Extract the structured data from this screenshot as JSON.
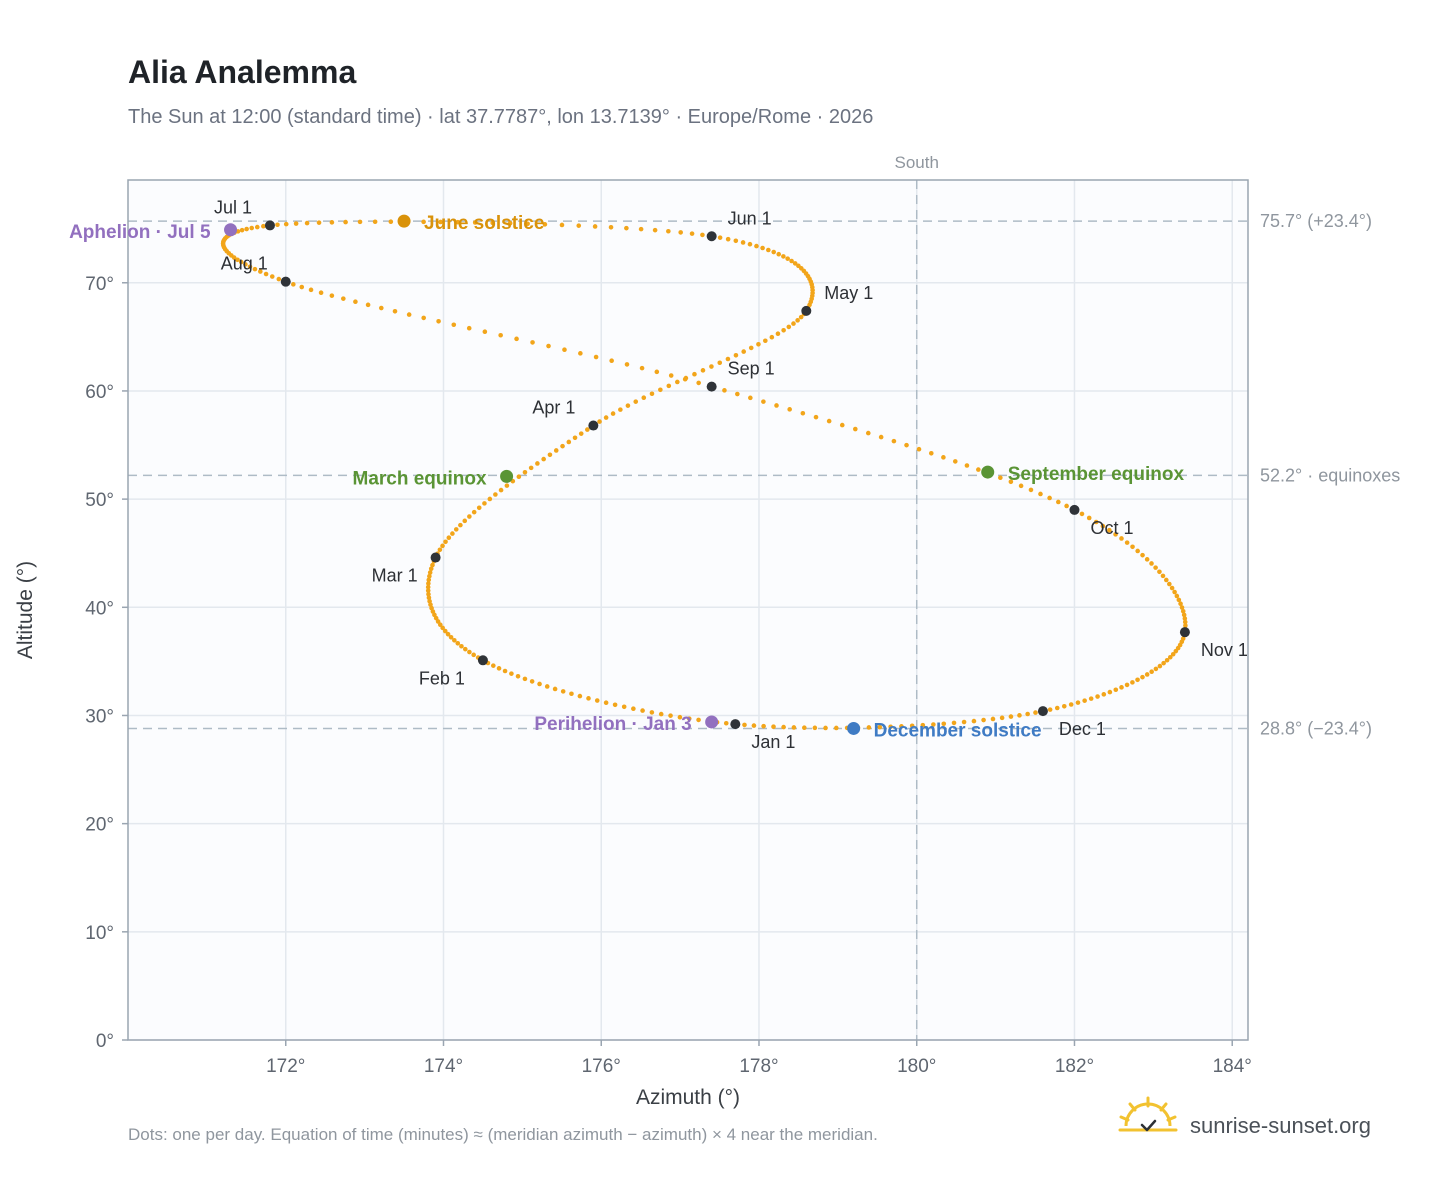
{
  "title": "Alia Analemma",
  "subtitle": "The Sun at 12:00 (standard time) · lat 37.7787°, lon 13.7139° · Europe/Rome · 2026",
  "footnote": "Dots: one per day. Equation of time (minutes) ≈ (meridian azimuth − azimuth) × 4 near the meridian.",
  "brand": "sunrise-sunset.org",
  "colors": {
    "path": "#f2a51a",
    "month": "#2f3338",
    "equinox": "#5a9435",
    "june_solstice": "#d9920a",
    "december_solstice": "#3f7bc4",
    "apsis": "#9270bf",
    "ref_line": "#aebbc6",
    "plot_bg": "#fbfcfe",
    "grid": "#e3e8ee"
  },
  "chart_data": {
    "type": "scatter",
    "xlabel": "Azimuth (°)",
    "ylabel": "Altitude (°)",
    "xlim": [
      170,
      184.2
    ],
    "ylim": [
      0,
      79.5
    ],
    "x_ticks": [
      172,
      174,
      176,
      178,
      180,
      182,
      184
    ],
    "x_tick_labels": [
      "172°",
      "174°",
      "176°",
      "178°",
      "180°",
      "182°",
      "184°"
    ],
    "y_ticks": [
      0,
      10,
      20,
      30,
      40,
      50,
      60,
      70
    ],
    "y_tick_labels": [
      "0°",
      "10°",
      "20°",
      "30°",
      "40°",
      "50°",
      "60°",
      "70°"
    ],
    "grid": true,
    "meridian": {
      "x": 180,
      "label": "South"
    },
    "reference_lines": [
      {
        "y": 75.7,
        "label": "75.7° (+23.4°)"
      },
      {
        "y": 52.2,
        "label": "52.2° · equinoxes"
      },
      {
        "y": 28.8,
        "label": "28.8° (−23.4°)"
      }
    ],
    "months": [
      {
        "label": "Jan 1",
        "azimuth": 177.7,
        "altitude": 29.2
      },
      {
        "label": "Feb 1",
        "azimuth": 174.5,
        "altitude": 35.1
      },
      {
        "label": "Mar 1",
        "azimuth": 173.9,
        "altitude": 44.6
      },
      {
        "label": "Apr 1",
        "azimuth": 175.9,
        "altitude": 56.8
      },
      {
        "label": "May 1",
        "azimuth": 178.6,
        "altitude": 67.4
      },
      {
        "label": "Jun 1",
        "azimuth": 177.4,
        "altitude": 74.3
      },
      {
        "label": "Jul 1",
        "azimuth": 171.8,
        "altitude": 75.3
      },
      {
        "label": "Aug 1",
        "azimuth": 172.0,
        "altitude": 70.1
      },
      {
        "label": "Sep 1",
        "azimuth": 177.4,
        "altitude": 60.4
      },
      {
        "label": "Oct 1",
        "azimuth": 182.0,
        "altitude": 49.0
      },
      {
        "label": "Nov 1",
        "azimuth": 183.4,
        "altitude": 37.7
      },
      {
        "label": "Dec 1",
        "azimuth": 181.6,
        "altitude": 30.4
      }
    ],
    "events": [
      {
        "label": "March equinox",
        "azimuth": 174.8,
        "altitude": 52.1,
        "kind": "equinox"
      },
      {
        "label": "June solstice",
        "azimuth": 173.5,
        "altitude": 75.7,
        "kind": "june_solstice"
      },
      {
        "label": "September equinox",
        "azimuth": 180.9,
        "altitude": 52.5,
        "kind": "equinox"
      },
      {
        "label": "December solstice",
        "azimuth": 179.2,
        "altitude": 28.8,
        "kind": "december_solstice"
      },
      {
        "label": "Perihelion · Jan 3",
        "azimuth": 177.4,
        "altitude": 29.4,
        "kind": "apsis"
      },
      {
        "label": "Aphelion · Jul 5",
        "azimuth": 171.3,
        "altitude": 74.9,
        "kind": "apsis"
      }
    ]
  }
}
